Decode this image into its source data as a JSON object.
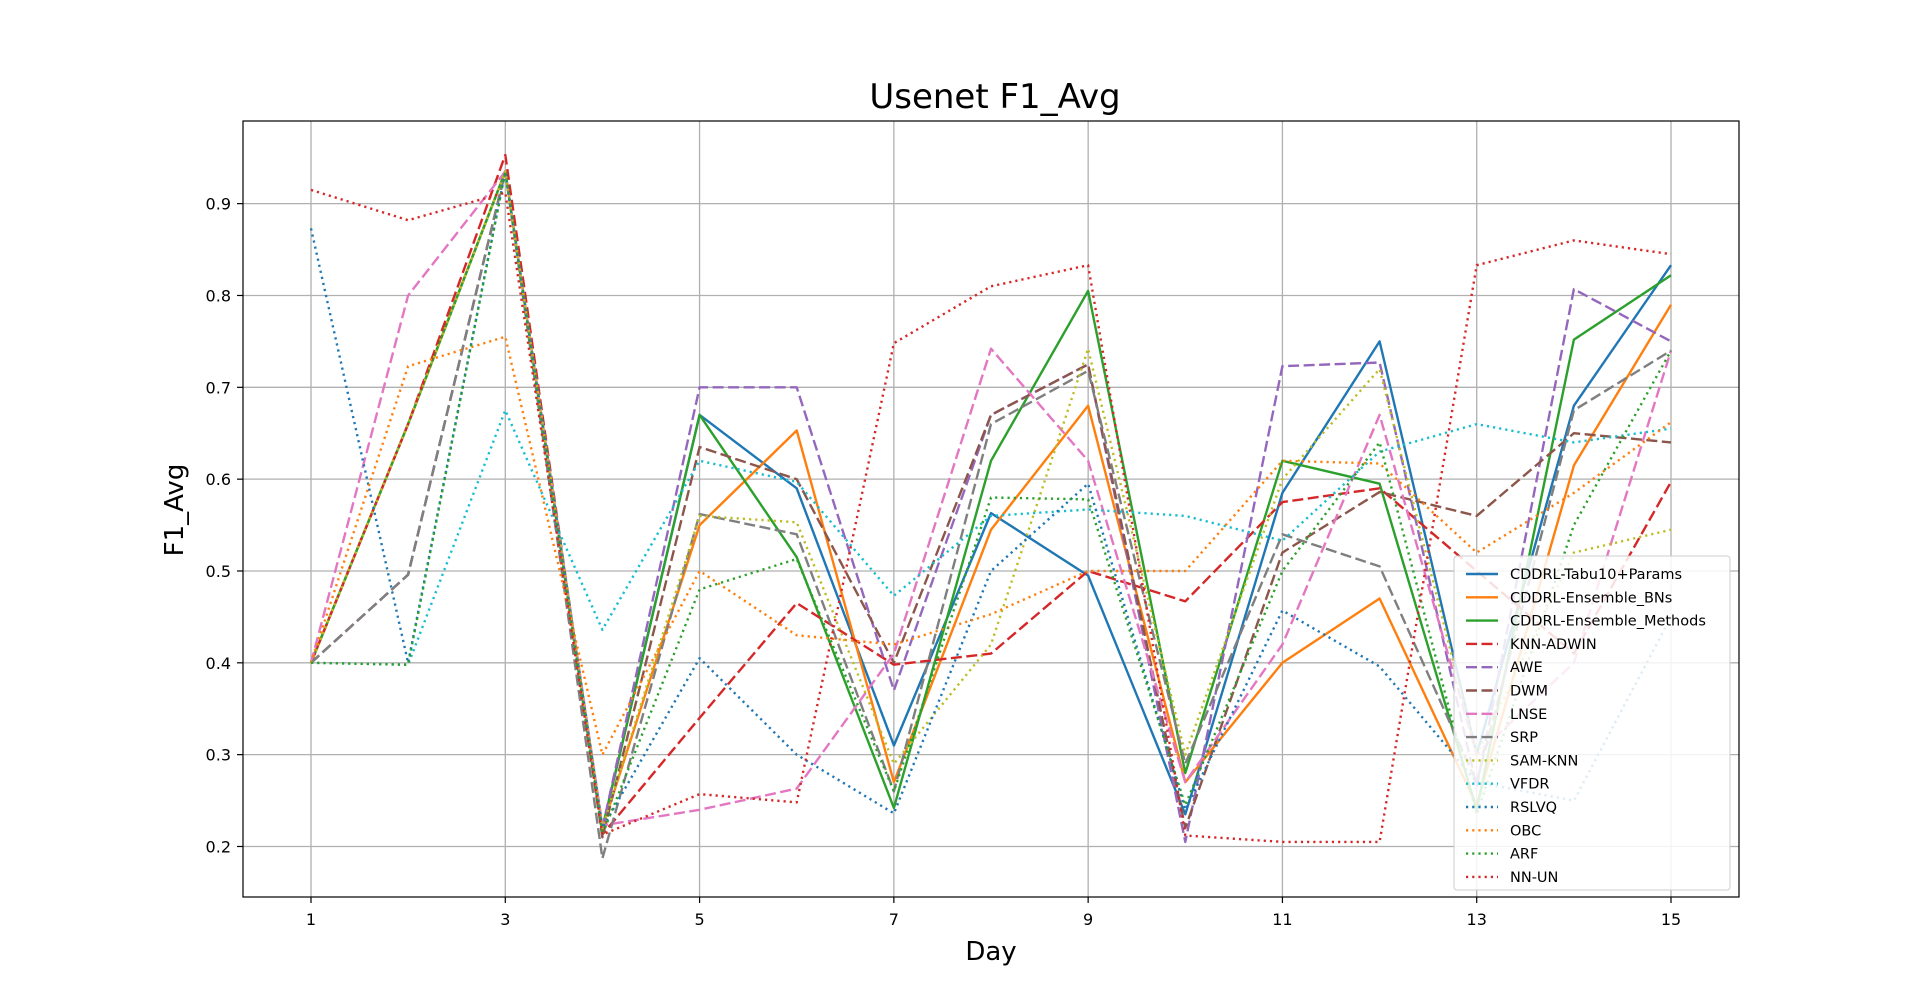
{
  "chart_data": {
    "type": "line",
    "title": "Usenet F1_Avg",
    "xlabel": "Day",
    "ylabel": "F1_Avg",
    "x": [
      1,
      2,
      3,
      4,
      5,
      6,
      7,
      8,
      9,
      10,
      11,
      12,
      13,
      14,
      15
    ],
    "xticks": [
      "1",
      "3",
      "5",
      "7",
      "9",
      "11",
      "13",
      "15"
    ],
    "yticks": [
      "0.2",
      "0.3",
      "0.4",
      "0.5",
      "0.6",
      "0.7",
      "0.8",
      "0.9"
    ],
    "xlim": [
      0.3,
      15.7
    ],
    "ylim": [
      0.145,
      0.99
    ],
    "grid": true,
    "legend_position": "lower-right",
    "series": [
      {
        "name": "CDDRL-Tabu10+Params",
        "color": "#1f77b4",
        "style": "solid",
        "values": [
          0.4,
          0.66,
          0.935,
          0.22,
          0.67,
          0.59,
          0.31,
          0.563,
          0.495,
          0.235,
          0.585,
          0.75,
          0.3,
          0.68,
          0.833
        ]
      },
      {
        "name": "CDDRL-Ensemble_BNs",
        "color": "#ff7f0e",
        "style": "solid",
        "values": [
          0.4,
          0.66,
          0.935,
          0.22,
          0.55,
          0.653,
          0.27,
          0.545,
          0.68,
          0.27,
          0.4,
          0.47,
          0.245,
          0.615,
          0.79
        ]
      },
      {
        "name": "CDDRL-Ensemble_Methods",
        "color": "#2ca02c",
        "style": "solid",
        "values": [
          0.4,
          0.66,
          0.935,
          0.22,
          0.67,
          0.515,
          0.242,
          0.62,
          0.805,
          0.28,
          0.62,
          0.595,
          0.24,
          0.752,
          0.822
        ]
      },
      {
        "name": "KNN-ADWIN",
        "color": "#d62728",
        "style": "dashed",
        "values": [
          0.4,
          0.66,
          0.953,
          0.213,
          0.34,
          0.465,
          0.398,
          0.41,
          0.5,
          0.467,
          0.575,
          0.59,
          0.5,
          0.41,
          0.597
        ]
      },
      {
        "name": "AWE",
        "color": "#9467bd",
        "style": "dashed",
        "values": [
          0.4,
          0.496,
          0.935,
          0.22,
          0.7,
          0.7,
          0.37,
          0.67,
          0.725,
          0.205,
          0.723,
          0.727,
          0.265,
          0.807,
          0.75
        ]
      },
      {
        "name": "DWM",
        "color": "#8c564b",
        "style": "dashed",
        "values": [
          0.4,
          0.496,
          0.935,
          0.21,
          0.635,
          0.6,
          0.4,
          0.67,
          0.725,
          0.22,
          0.52,
          0.586,
          0.56,
          0.65,
          0.64
        ]
      },
      {
        "name": "LNSE",
        "color": "#e377c2",
        "style": "dashed",
        "values": [
          0.4,
          0.8,
          0.935,
          0.223,
          0.24,
          0.263,
          0.41,
          0.742,
          0.62,
          0.27,
          0.42,
          0.67,
          0.3,
          0.4,
          0.74
        ]
      },
      {
        "name": "SRP",
        "color": "#7f7f7f",
        "style": "dashed",
        "values": [
          0.4,
          0.496,
          0.935,
          0.187,
          0.562,
          0.54,
          0.26,
          0.66,
          0.718,
          0.29,
          0.54,
          0.505,
          0.27,
          0.675,
          0.74
        ]
      },
      {
        "name": "SAM-KNN",
        "color": "#bcbd22",
        "style": "dotted",
        "values": [
          0.4,
          0.66,
          0.935,
          0.22,
          0.56,
          0.553,
          0.29,
          0.42,
          0.742,
          0.3,
          0.6,
          0.72,
          0.3,
          0.52,
          0.545
        ]
      },
      {
        "name": "VFDR",
        "color": "#17becf",
        "style": "dotted",
        "values": [
          0.4,
          0.398,
          0.675,
          0.436,
          0.62,
          0.597,
          0.473,
          0.56,
          0.567,
          0.56,
          0.533,
          0.63,
          0.66,
          0.64,
          0.655
        ]
      },
      {
        "name": "RSLVQ",
        "color": "#1f77b4",
        "style": "dotted",
        "values": [
          0.873,
          0.4,
          0.935,
          0.22,
          0.405,
          0.3,
          0.236,
          0.5,
          0.595,
          0.24,
          0.457,
          0.396,
          0.27,
          0.25,
          0.45
        ]
      },
      {
        "name": "OBC",
        "color": "#ff7f0e",
        "style": "dotted",
        "values": [
          0.4,
          0.723,
          0.755,
          0.3,
          0.5,
          0.43,
          0.42,
          0.453,
          0.5,
          0.5,
          0.62,
          0.617,
          0.52,
          0.585,
          0.662
        ]
      },
      {
        "name": "ARF",
        "color": "#2ca02c",
        "style": "dotted",
        "values": [
          0.4,
          0.398,
          0.935,
          0.213,
          0.48,
          0.513,
          0.26,
          0.58,
          0.578,
          0.245,
          0.5,
          0.64,
          0.235,
          0.55,
          0.74
        ]
      },
      {
        "name": "NN-UN",
        "color": "#d62728",
        "style": "dotted",
        "values": [
          0.915,
          0.882,
          0.912,
          0.213,
          0.257,
          0.248,
          0.748,
          0.81,
          0.833,
          0.212,
          0.205,
          0.205,
          0.833,
          0.86,
          0.845
        ]
      }
    ]
  }
}
